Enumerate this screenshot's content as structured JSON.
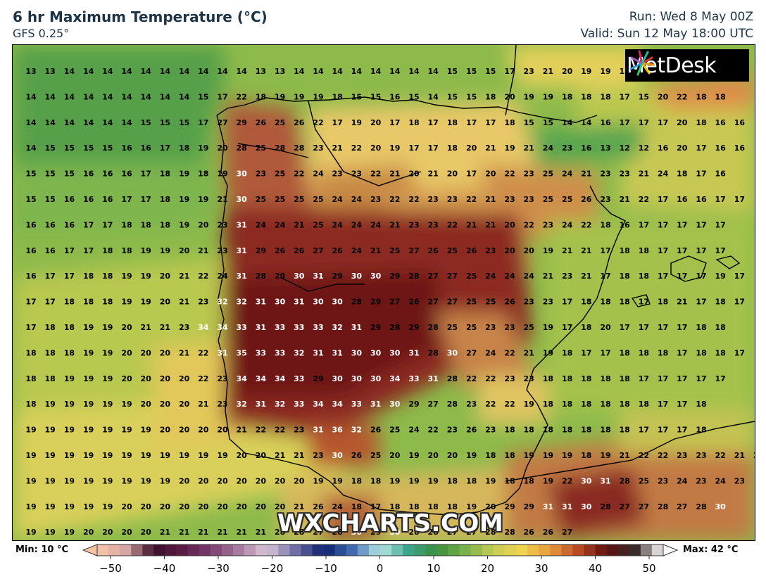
{
  "header": {
    "title": "6 hr Maximum Temperature (°C)",
    "model": "GFS 0.25°",
    "run": "Run: Wed 8 May 00Z",
    "valid": "Valid: Sun 12 May 18:00 UTC"
  },
  "logo": {
    "text": "MetDesk"
  },
  "watermark": "WXCHARTS.COM",
  "colorbar": {
    "min_label": "Min: 10 °C",
    "max_label": "Max: 42 °C",
    "ticks": [
      "−50",
      "−40",
      "−30",
      "−20",
      "−10",
      "0",
      "10",
      "20",
      "30",
      "40",
      "50"
    ]
  },
  "map": {
    "rows": [
      "13 13 14 14 14 14 14 14 14 14 14 14 13 13 14 14 14 14 14 14 14 14 15 15 15 17 23 21 20 19 19 18",
      "14 14 14 14 14 14 14 14 14 15 17 22 18 19 19 19 18 15 15 16 15 14 15 15 18 20 19 19 18 18 18 17 15 20 22 18 18",
      "14 14 14 14 14 14 15 15 15 17 27 29 26 25 26 22 17 19 20 17 18 17 18 17 17 18 15 15 14 14 16 17 17 17 20 18 16 16",
      "14 15 15 15 15 16 16 17 18 19 20 28 25 28 28 23 21 22 20 19 17 17 18 20 21 19 21 24 23 16 13 12 12 16 20 17 16 16",
      "15 15 15 16 16 16 17 18 19 18 19 30 23 25 22 24 23 23 22 21 20 21 20 17 20 22 23 25 24 21 23 23 21 24 18 17 16",
      "15 15 16 16 16 17 17 18 19 19 21 30 25 25 25 25 24 24 23 22 22 23 23 22 21 23 23 25 25 26 23 21 22 17 16 16 17 17",
      "16 16 16 17 17 18 18 18 19 20 23 31 24 24 21 25 24 24 24 21 23 23 22 21 21 20 22 23 24 22 18 16 17 17 17 17 17",
      "16 16 17 17 18 18 19 19 20 21 23 31 29 26 26 27 26 24 21 25 27 26 25 26 23 20 20 19 21 21 17 18 18 17 17 17 17",
      "16 17 17 18 18 19 19 20 21 22 24 31 28 29 30 31 29 30 30 29 28 27 27 25 24 24 24 21 23 21 17 18 18 17 17 17 19 17",
      "17 17 18 18 18 19 19 20 21 23 32 32 31 30 31 30 30 28 29 27 26 27 27 25 25 26 23 23 17 18 18 18 17 18 21 17 18 17",
      "17 18 18 19 19 20 21 21 23 34 34 33 31 33 33 33 32 31 29 28 29 28 25 25 23 23 25 19 17 18 20 17 17 17 17 18 18",
      "18 18 18 19 19 20 20 20 21 22 31 35 33 33 32 31 31 30 30 30 31 28 30 27 24 22 21 19 18 17 17 18 18 18 17 18 18 17",
      "18 18 19 19 19 20 20 20 20 22 23 34 34 34 33 29 30 30 30 34 33 31 28 22 22 23 23 18 18 18 18 18 17 17 17 17 17",
      "18 19 19 19 19 19 20 20 20 21 23 32 31 32 33 34 34 33 31 30 29 27 28 23 22 22 19 18 18 18 18 18 18 17 17 18",
      "19 19 19 19 19 19 19 20 20 20 20 21 22 22 23 31 36 32 26 25 24 22 23 26 23 18 18 18 18 18 18 18 17 17 17 18",
      "19 19 19 19 19 19 19 19 19 19 19 20 20 21 21 23 30 26 25 20 19 20 20 19 18 18 19 19 19 18 19 21 22 22 23 23 22 21 21",
      "19 19 19 19 19 19 19 19 20 20 20 20 20 20 20 19 19 18 18 19 19 19 18 18 19 18 18 19 22 30 31 28 25 23 24 23 24 23",
      "19 19 19 19 19 20 20 20 20 20 20 20 20 20 21 26 24 18 17 18 18 18 18 19 20 29 29 31 31 30 28 27 27 28 27 28 30",
      "19 19 19 20 20 20 20 21 21 21 21 21 21 28 28 27 28 30 29 30 28 28 27 27 28 28 26 26 27"
    ]
  }
}
